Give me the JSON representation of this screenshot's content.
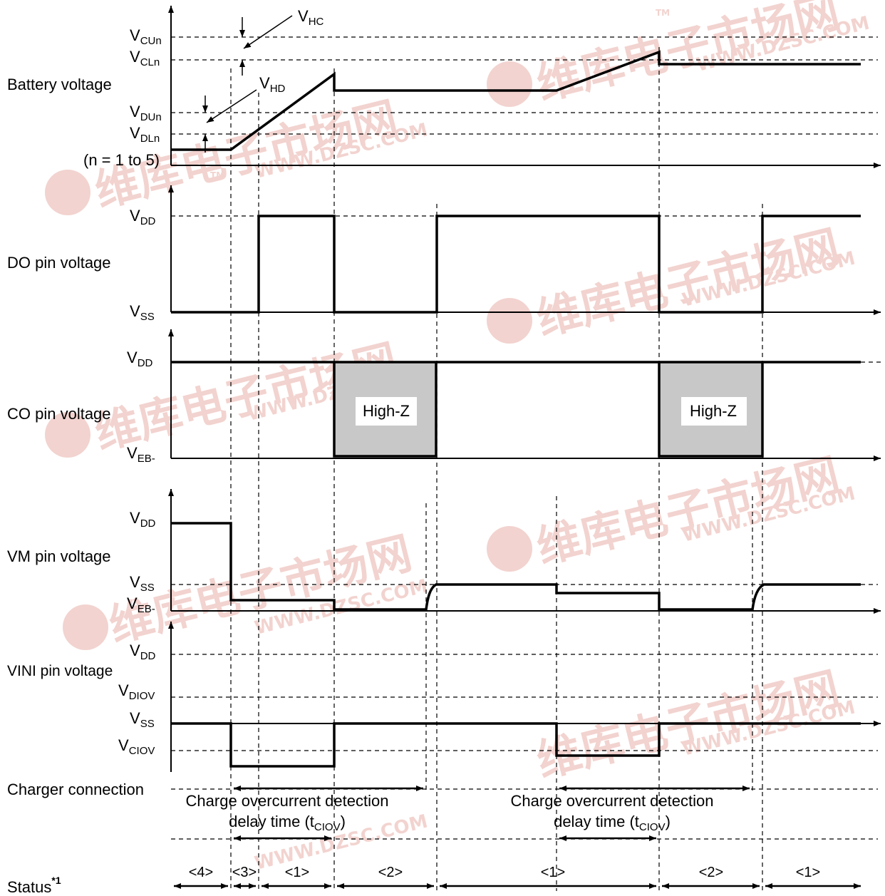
{
  "watermark": {
    "cn_text": "维库电子市场网",
    "url_text": "WWW.DZSC.COM",
    "tm_text": "TM",
    "color": "#e8b0a8"
  },
  "axis_color": "#000000",
  "highz_fill": "#c8c8c8",
  "signals": {
    "battery": {
      "name": "Battery voltage",
      "levels": {
        "vcu": {
          "main": "V",
          "sub": "CUn"
        },
        "vcl": {
          "main": "V",
          "sub": "CLn"
        },
        "vdu": {
          "main": "V",
          "sub": "DUn"
        },
        "vdl": {
          "main": "V",
          "sub": "DLn"
        }
      },
      "note": "(n = 1 to 5)",
      "vhc": {
        "main": "V",
        "sub": "HC"
      },
      "vhd": {
        "main": "V",
        "sub": "HD"
      }
    },
    "do": {
      "name": "DO pin voltage",
      "levels": {
        "vdd": {
          "main": "V",
          "sub": "DD"
        },
        "vss": {
          "main": "V",
          "sub": "SS"
        }
      }
    },
    "co": {
      "name": "CO pin voltage",
      "levels": {
        "vdd": {
          "main": "V",
          "sub": "DD"
        },
        "veb": {
          "main": "V",
          "sub": "EB-"
        }
      },
      "highz_label": "High-Z"
    },
    "vm": {
      "name": "VM pin voltage",
      "levels": {
        "vdd": {
          "main": "V",
          "sub": "DD"
        },
        "vss": {
          "main": "V",
          "sub": "SS"
        },
        "veb": {
          "main": "V",
          "sub": "EB-"
        }
      }
    },
    "vini": {
      "name": "VINI pin voltage",
      "levels": {
        "vdd": {
          "main": "V",
          "sub": "DD"
        },
        "vdiov": {
          "main": "V",
          "sub": "DIOV"
        },
        "vss": {
          "main": "V",
          "sub": "SS"
        },
        "vciov": {
          "main": "V",
          "sub": "CIOV"
        }
      }
    }
  },
  "charger": {
    "name": "Charger connection",
    "delay_line1": "Charge overcurrent detection",
    "delay_line2_main": "delay time (t",
    "delay_line2_sub": "CIOV",
    "delay_line2_end": ")"
  },
  "status": {
    "name": "Status",
    "footnote_mark": "*1",
    "segments": [
      "<4>",
      "<3>",
      "<1>",
      "<2>",
      "<1>",
      "<2>",
      "<1>"
    ]
  }
}
